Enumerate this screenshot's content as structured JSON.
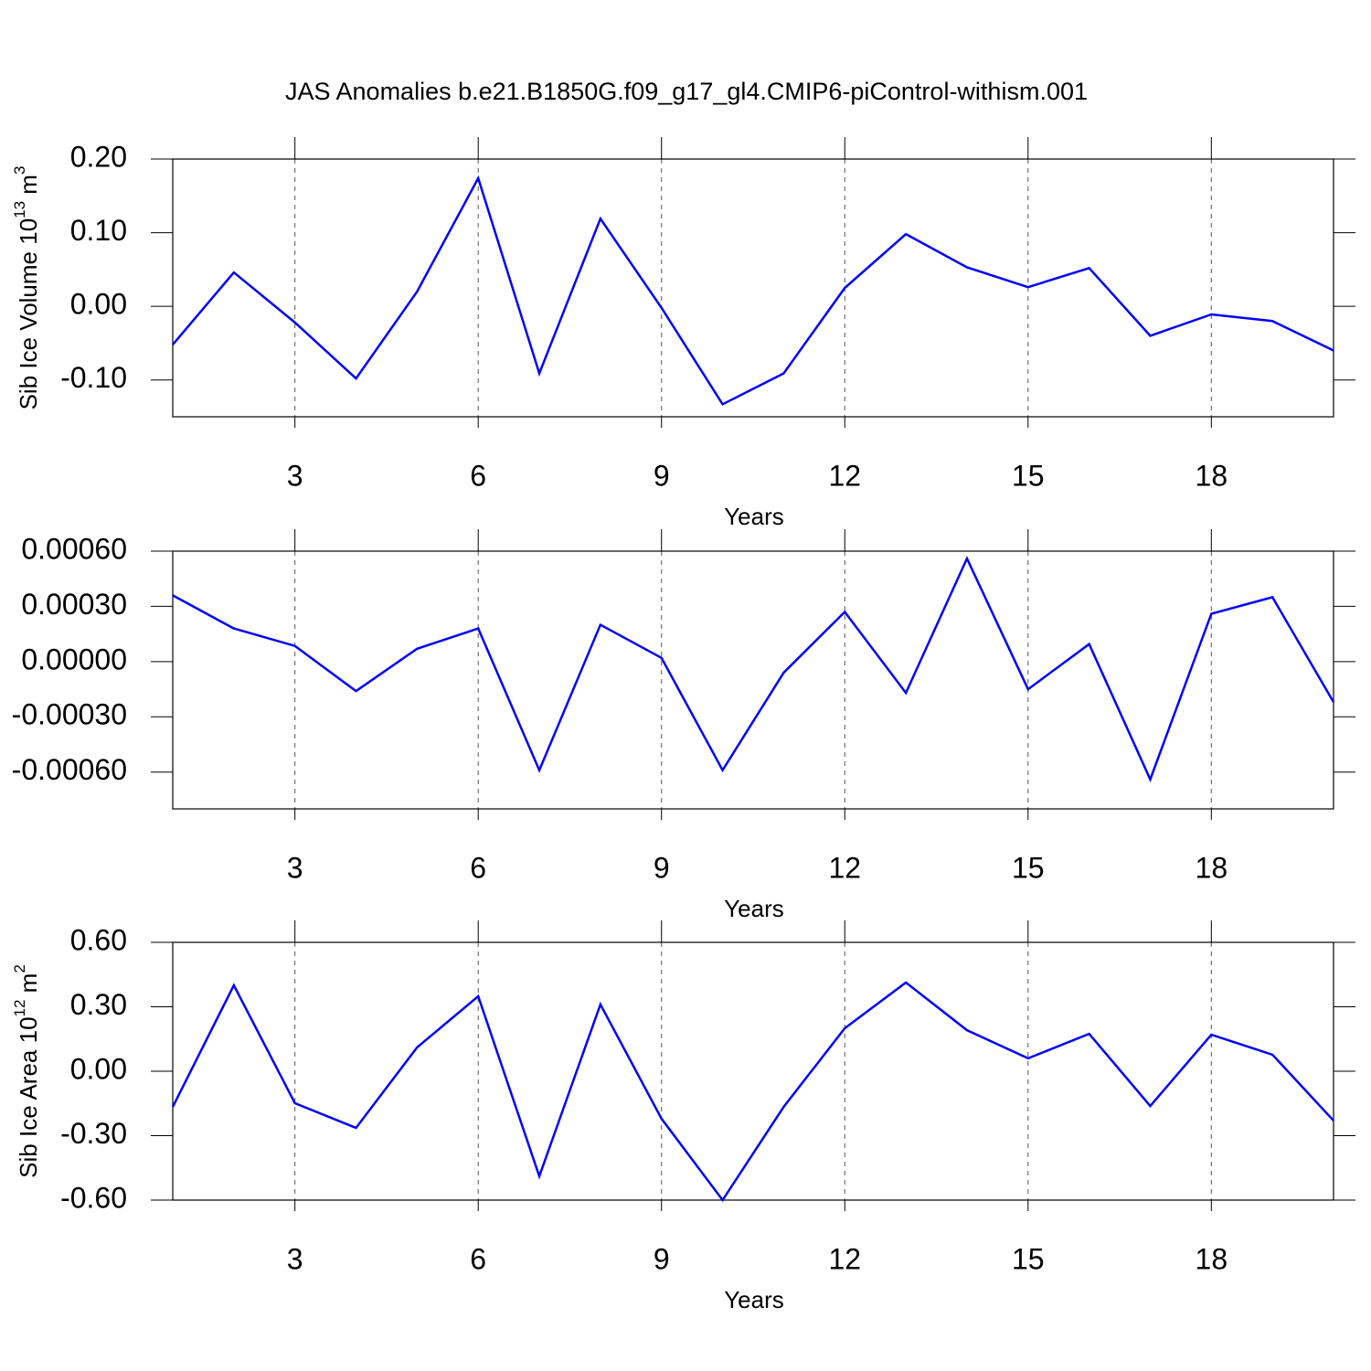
{
  "title": "JAS Anomalies b.e21.B1850G.f09_g17_gl4.CMIP6-piControl-withism.001",
  "chart_data": [
    {
      "type": "line",
      "ylabel": [
        "Sib Ice Volume 10",
        "13",
        " m",
        "3"
      ],
      "xlabel": "Years",
      "x": [
        1,
        2,
        3,
        4,
        5,
        6,
        7,
        8,
        9,
        10,
        11,
        12,
        13,
        14,
        15,
        16,
        17,
        18,
        19,
        20
      ],
      "series": [
        {
          "color": "#0000ff",
          "values": [
            -0.052,
            0.046,
            -0.022,
            -0.098,
            0.02,
            0.174,
            -0.091,
            0.119,
            -0.002,
            -0.133,
            -0.091,
            0.025,
            0.098,
            0.053,
            0.026,
            0.052,
            -0.04,
            -0.011,
            -0.02,
            -0.06
          ]
        }
      ],
      "xlim": [
        1,
        20
      ],
      "xticks": [
        3,
        6,
        9,
        12,
        15,
        18
      ],
      "ylim": [
        -0.15,
        0.2
      ],
      "yticks": [
        {
          "value": 0.2,
          "label": "0.20"
        },
        {
          "value": 0.1,
          "label": "0.10"
        },
        {
          "value": 0,
          "label": "0.00"
        },
        {
          "value": -0.1,
          "label": "-0.10"
        }
      ],
      "grid": "x"
    },
    {
      "type": "line",
      "xlabel": "Years",
      "x": [
        1,
        2,
        3,
        4,
        5,
        6,
        7,
        8,
        9,
        10,
        11,
        12,
        13,
        14,
        15,
        16,
        17,
        18,
        19,
        20
      ],
      "series": [
        {
          "color": "#0000ff",
          "values": [
            0.00036,
            0.00018,
            8.5e-05,
            -0.00016,
            7e-05,
            0.00018,
            -0.00059,
            0.0002,
            2e-05,
            -0.00059,
            -6e-05,
            0.00027,
            -0.00017,
            0.00056,
            -0.00015,
            9.5e-05,
            -0.00064,
            0.00026,
            0.00035,
            -0.00022
          ]
        }
      ],
      "xlim": [
        1,
        20
      ],
      "xticks": [
        3,
        6,
        9,
        12,
        15,
        18
      ],
      "ylim": [
        -0.0008,
        0.0006
      ],
      "yticks": [
        {
          "value": 0.0006,
          "label": "0.00060"
        },
        {
          "value": 0.0003,
          "label": "0.00030"
        },
        {
          "value": 0,
          "label": "0.00000"
        },
        {
          "value": -0.0003,
          "label": "-0.00030"
        },
        {
          "value": -0.0006,
          "label": "-0.00060"
        }
      ],
      "grid": "x"
    },
    {
      "type": "line",
      "ylabel": [
        "Sib Ice Area 10",
        "12",
        " m",
        "2"
      ],
      "xlabel": "Years",
      "x": [
        1,
        2,
        3,
        4,
        5,
        6,
        7,
        8,
        9,
        10,
        11,
        12,
        13,
        14,
        15,
        16,
        17,
        18,
        19,
        20
      ],
      "series": [
        {
          "color": "#0000ff",
          "values": [
            -0.166,
            0.4,
            -0.149,
            -0.264,
            0.111,
            0.349,
            -0.489,
            0.311,
            -0.221,
            -0.6,
            -0.166,
            0.2,
            0.413,
            0.191,
            0.06,
            0.174,
            -0.162,
            0.17,
            0.077,
            -0.23
          ]
        }
      ],
      "xlim": [
        1,
        20
      ],
      "xticks": [
        3,
        6,
        9,
        12,
        15,
        18
      ],
      "ylim": [
        -0.6,
        0.6
      ],
      "yticks": [
        {
          "value": 0.6,
          "label": "0.60"
        },
        {
          "value": 0.3,
          "label": "0.30"
        },
        {
          "value": 0,
          "label": "0.00"
        },
        {
          "value": -0.3,
          "label": "-0.30"
        },
        {
          "value": -0.6,
          "label": "-0.60"
        }
      ],
      "grid": "x"
    }
  ]
}
